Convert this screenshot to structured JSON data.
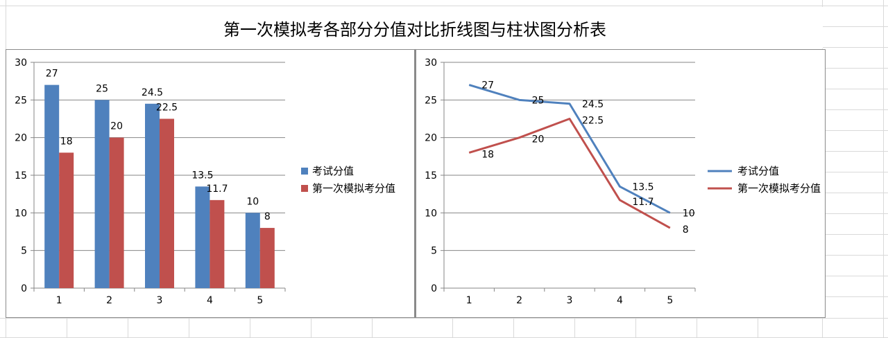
{
  "title": "第一次模拟考各部分分值对比折线图与柱状图分析表",
  "colors": {
    "series_a": "#4f81bd",
    "series_b": "#c0504d",
    "gridline": "#868686"
  },
  "chart_data": [
    {
      "type": "bar",
      "categories": [
        "1",
        "2",
        "3",
        "4",
        "5"
      ],
      "series": [
        {
          "name": "考试分值",
          "values": [
            27,
            25,
            24.5,
            13.5,
            10
          ]
        },
        {
          "name": "第一次模拟考分值",
          "values": [
            18,
            20,
            22.5,
            11.7,
            8
          ]
        }
      ],
      "ylim": [
        0,
        30
      ],
      "yticks": [
        "0",
        "5",
        "10",
        "15",
        "20",
        "25",
        "30"
      ],
      "legend": "right",
      "grid": true
    },
    {
      "type": "line",
      "categories": [
        "1",
        "2",
        "3",
        "4",
        "5"
      ],
      "series": [
        {
          "name": "考试分值",
          "values": [
            27,
            25,
            24.5,
            13.5,
            10
          ]
        },
        {
          "name": "第一次模拟考分值",
          "values": [
            18,
            20,
            22.5,
            11.7,
            8
          ]
        }
      ],
      "ylim": [
        0,
        30
      ],
      "yticks": [
        "0",
        "5",
        "10",
        "15",
        "20",
        "25",
        "30"
      ],
      "legend": "right",
      "grid": true
    }
  ]
}
